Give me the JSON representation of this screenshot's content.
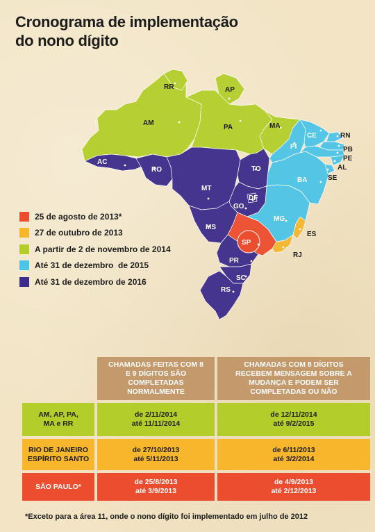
{
  "title": {
    "line1": "Cronograma de implementação",
    "line2": "do nono dígito"
  },
  "colors": {
    "red": "#ec4d2e",
    "yellow": "#f7b62c",
    "green": "#b3ce2b",
    "cyan": "#4cc4e6",
    "purple": "#3c2c8c",
    "brown": "#c49a6c"
  },
  "map_labels": {
    "RR": "RR",
    "AP": "AP",
    "AM": "AM",
    "PA": "PA",
    "MA": "MA",
    "AC": "AC",
    "RO": "RO",
    "MT": "MT",
    "TO": "TO",
    "GO": "GO",
    "DF": "DF",
    "MS": "MS",
    "PR": "PR",
    "SC": "SC",
    "RS": "RS",
    "SP": "SP",
    "MG": "MG",
    "ES": "ES",
    "RJ": "RJ",
    "BA": "BA",
    "PI": "PI",
    "CE": "CE",
    "RN": "RN",
    "PB": "PB",
    "PE": "PE",
    "AL": "AL",
    "SE": "SE"
  },
  "legend": [
    {
      "label": "25 de agosto de 2013*",
      "color": "#ec4d2e"
    },
    {
      "label": "27 de outubro de 2013",
      "color": "#f7b62c"
    },
    {
      "label": "A partir de 2 de novembro de 2014",
      "color": "#b3ce2b"
    },
    {
      "label": "Até 31 de dezembro  de 2015",
      "color": "#4cc4e6"
    },
    {
      "label": "Até 31 de dezembro de 2016",
      "color": "#3c2c8c"
    }
  ],
  "table": {
    "header1": [
      "CHAMADAS FEITAS COM 8",
      "E 9 DÍGITOS SÃO",
      "COMPLETADAS",
      "NORMALMENTE"
    ],
    "header2": [
      "CHAMADAS COM 8 DÍGITOS",
      "RECEBEM MENSAGEM SOBRE A",
      "MUDANÇA E PODEM SER",
      "COMPLETADAS OU NÃO"
    ],
    "rows": [
      {
        "label": [
          "AM, AP, PA,",
          "MA e RR"
        ],
        "col1": [
          "de 2/11/2014",
          "até 11/11/2014"
        ],
        "col2": [
          "de 12/11/2014",
          "até 9/2/2015"
        ]
      },
      {
        "label": [
          "RIO DE JANEIRO",
          "ESPÍRITO SANTO"
        ],
        "col1": [
          "de 27/10/2013",
          "até 5/11/2013"
        ],
        "col2": [
          "de 6/11/2013",
          "até 3/2/2014"
        ]
      },
      {
        "label": [
          "SÃO PAULO*"
        ],
        "col1": [
          "de 25/8/2013",
          "até 3/9/2013"
        ],
        "col2": [
          "de 4/9/2013",
          "até 2/12/2013"
        ]
      }
    ]
  },
  "footnote": "*Exceto para a área 11, onde o nono dígito foi implementado em julho de 2012"
}
